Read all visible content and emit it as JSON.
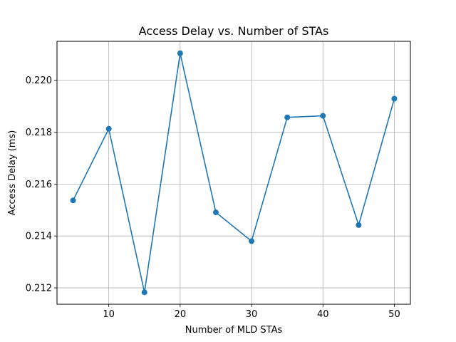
{
  "chart_data": {
    "type": "line",
    "title": "Access Delay vs. Number of STAs",
    "xlabel": "Number of MLD STAs",
    "ylabel": "Access Delay (ms)",
    "x": [
      5,
      10,
      15,
      20,
      25,
      30,
      35,
      40,
      45,
      50
    ],
    "series": [
      {
        "values": [
          0.21537,
          0.21813,
          0.21183,
          0.22104,
          0.21491,
          0.2138,
          0.21857,
          0.21863,
          0.21442,
          0.21929
        ],
        "color": "#1f77b4",
        "marker": "circle"
      }
    ],
    "xlim": [
      2.75,
      52.25
    ],
    "ylim": [
      0.21137,
      0.2215
    ],
    "xticks": [
      10,
      20,
      30,
      40,
      50
    ],
    "xtick_labels": [
      "10",
      "20",
      "30",
      "40",
      "50"
    ],
    "yticks": [
      0.212,
      0.214,
      0.216,
      0.218,
      0.22
    ],
    "ytick_labels": [
      "0.212",
      "0.214",
      "0.216",
      "0.218",
      "0.220"
    ],
    "grid": true,
    "legend": false
  }
}
